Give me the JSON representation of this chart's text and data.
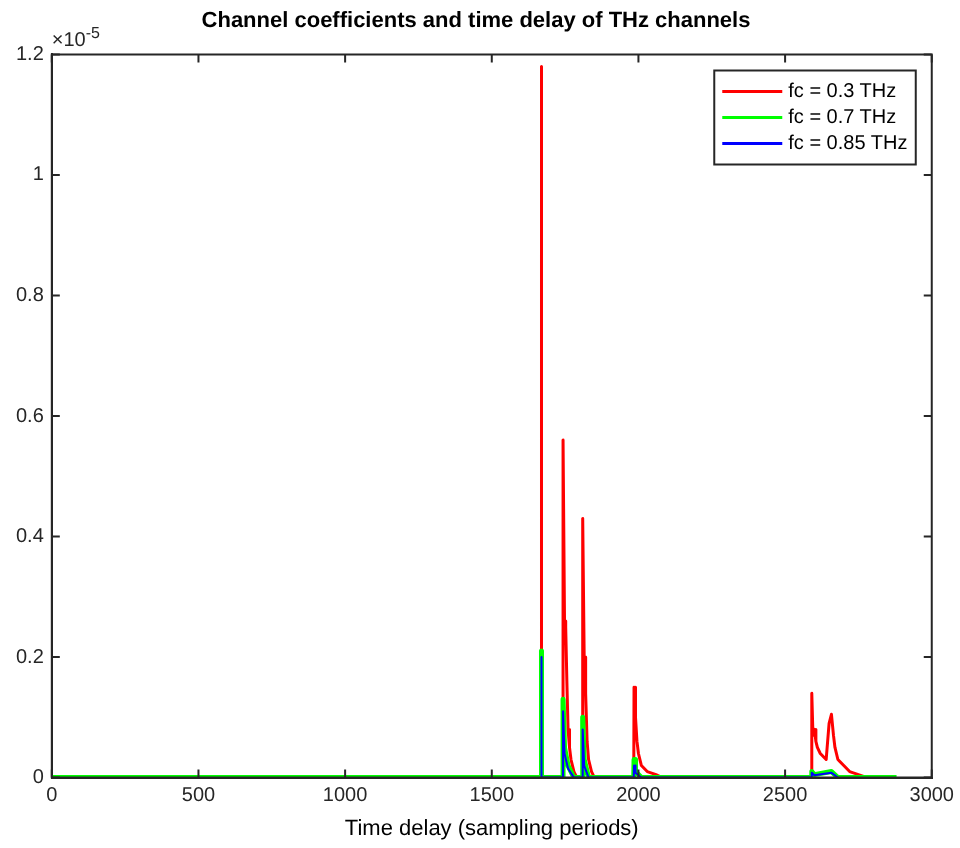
{
  "chart_data": {
    "type": "line",
    "title": "Channel coefficients and time delay of THz channels",
    "xlabel": "Time delay (sampling periods)",
    "annotations": [
      "×10$^{-5}$"
    ],
    "xlim": [
      0,
      3000
    ],
    "xticks": [
      0,
      500,
      1000,
      1500,
      2000,
      2500,
      3000
    ],
    "ylim": [
      0,
      1.2
    ],
    "yticks": [
      0,
      0.2,
      0.4,
      0.6,
      0.8,
      1,
      1.2
    ],
    "grid": false,
    "legend": "top right",
    "marker": "none",
    "line_style": "solid",
    "series": [
      {
        "name": "fc = 0.3 THz",
        "color": "#ff0000",
        "x": [
          1668,
          1669,
          1670,
          1742,
          1743,
          1748,
          1752,
          1756,
          1760,
          1765,
          1770,
          1780,
          1790,
          1809,
          1810,
          1815,
          1820,
          1825,
          1830,
          1840,
          1850,
          1984,
          1985,
          1990,
          1995,
          2000,
          2010,
          2030,
          2060,
          2080,
          2590,
          2591,
          2595,
          2600,
          2605,
          2610,
          2620,
          2640,
          2650,
          2658,
          2665,
          2670,
          2680,
          2700,
          2720,
          2750,
          2780
        ],
        "values": [
          0,
          1.18,
          0,
          0,
          0.56,
          0.26,
          0.25,
          0.16,
          0.08,
          0.05,
          0.03,
          0.01,
          0,
          0,
          0.43,
          0.2,
          0.14,
          0.06,
          0.03,
          0.01,
          0,
          0,
          0.15,
          0.1,
          0.06,
          0.04,
          0.02,
          0.01,
          0.005,
          0,
          0,
          0.14,
          0.07,
          0.08,
          0.06,
          0.05,
          0.04,
          0.03,
          0.09,
          0.105,
          0.07,
          0.05,
          0.03,
          0.02,
          0.01,
          0.005,
          0
        ]
      },
      {
        "name": "fc = 0.7 THz",
        "color": "#00ff00",
        "x": [
          0,
          1668,
          1669,
          1670,
          1742,
          1743,
          1748,
          1760,
          1780,
          1809,
          1810,
          1815,
          1830,
          1984,
          1985,
          1990,
          2010,
          2590,
          2591,
          2600,
          2658,
          2680,
          2880
        ],
        "values": [
          0,
          0,
          0.21,
          0,
          0,
          0.13,
          0.05,
          0.02,
          0,
          0,
          0.1,
          0.03,
          0,
          0,
          0.03,
          0.01,
          0,
          0,
          0.01,
          0.005,
          0.01,
          0,
          0
        ]
      },
      {
        "name": "fc = 0.85 THz",
        "color": "#0000ff",
        "x": [
          1668,
          1669,
          1670,
          1742,
          1743,
          1748,
          1760,
          1780,
          1809,
          1810,
          1815,
          1830,
          1984,
          1985,
          1990,
          2010,
          2590,
          2591,
          2600,
          2658,
          2680
        ],
        "values": [
          0,
          0.2,
          0,
          0,
          0.11,
          0.04,
          0.015,
          0,
          0,
          0.08,
          0.02,
          0,
          0,
          0.02,
          0.008,
          0,
          0,
          0.008,
          0.004,
          0.008,
          0
        ]
      }
    ]
  }
}
